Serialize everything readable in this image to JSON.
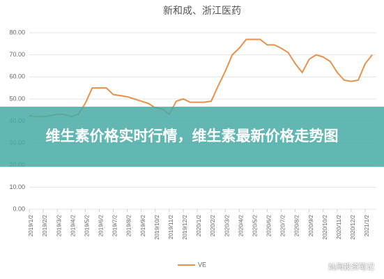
{
  "chart_data": {
    "type": "line",
    "title": "新和成、浙江医药",
    "categories": [
      "2019/1/2",
      null,
      "2019/2/2",
      null,
      "2019/3/2",
      null,
      "2019/4/2",
      null,
      "2019/5/2",
      null,
      "2019/6/2",
      null,
      "2019/7/2",
      null,
      "2019/8/2",
      null,
      "2019/9/2",
      null,
      "2019/10/2",
      null,
      "2019/11/2",
      null,
      "2019/12/2",
      null,
      "2020/1/2",
      null,
      "2020/2/2",
      null,
      "2020/3/2",
      null,
      "2020/4/2",
      null,
      "2020/5/2",
      null,
      "2020/6/2",
      null,
      "2020/7/2",
      null,
      "2020/8/2",
      null,
      "2020/9/2",
      null,
      "2020/10/2",
      null,
      "2020/11/2",
      null,
      "2020/12/2",
      null,
      "2021/1/2",
      null
    ],
    "series": [
      {
        "name": "VE",
        "color": "#e8914a",
        "values": [
          42.5,
          42,
          42,
          42.5,
          43,
          43,
          42,
          43,
          48,
          55,
          55,
          55,
          52,
          51.5,
          51,
          50,
          49,
          48,
          46,
          45.5,
          43,
          49,
          50,
          48.5,
          48.5,
          48.5,
          49,
          56,
          62.5,
          70,
          73,
          77,
          77,
          77,
          74.5,
          74.5,
          73,
          71,
          66,
          62,
          68,
          70,
          69,
          67,
          62,
          58.5,
          58,
          58.5,
          66,
          70
        ]
      }
    ],
    "ylim": [
      0,
      80
    ],
    "yticks": [
      {
        "value": 0,
        "label": "0.00"
      },
      {
        "value": 10,
        "label": "10.00"
      },
      {
        "value": 20,
        "label": "20.00"
      },
      {
        "value": 30,
        "label": "30.00"
      },
      {
        "value": 40,
        "label": "40.00"
      },
      {
        "value": 50,
        "label": "50.00"
      },
      {
        "value": 60,
        "label": "60.00"
      },
      {
        "value": 70,
        "label": "70.00"
      },
      {
        "value": 80,
        "label": "80.00"
      }
    ],
    "grid": true
  },
  "banner": "维生素价格实时行情，维生素最新价格走势图",
  "watermark": "灿海投资笔记"
}
